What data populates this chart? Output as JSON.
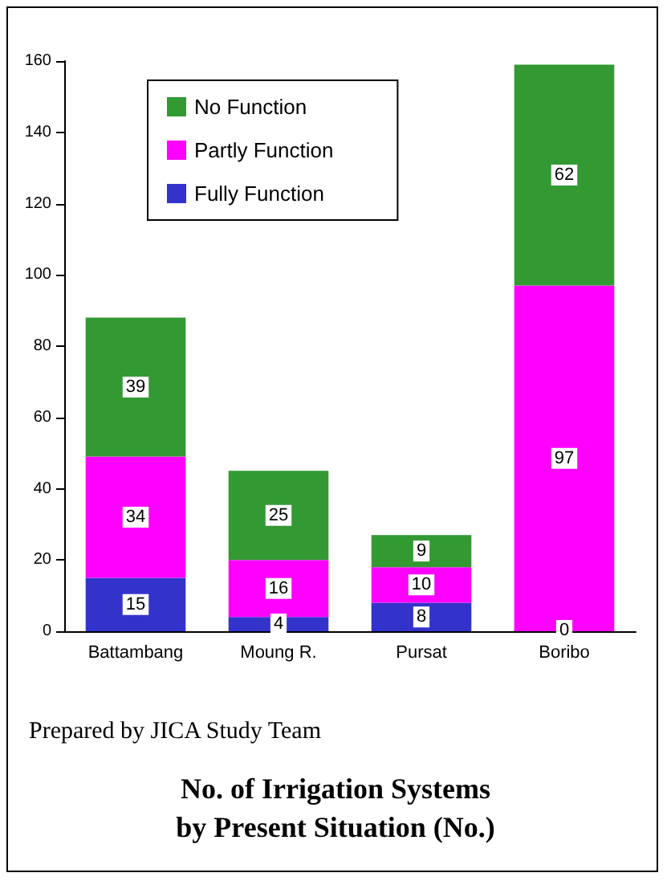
{
  "chart_data": {
    "type": "bar",
    "title": "No. of Irrigation Systems\nby Present Situation (No.)",
    "annotations": [
      "Prepared by JICA Study Team"
    ],
    "categories": [
      "Battambang",
      "Moung R.",
      "Pursat",
      "Boribo"
    ],
    "series": [
      {
        "name": "Fully Function",
        "color": "#3333cc",
        "values": [
          15,
          4,
          8,
          0
        ]
      },
      {
        "name": "Partly Function",
        "color": "#ff00ff",
        "values": [
          34,
          16,
          10,
          97
        ]
      },
      {
        "name": "No Function",
        "color": "#339933",
        "values": [
          39,
          25,
          9,
          62
        ]
      }
    ],
    "stacked": true,
    "data_labels": true,
    "ylim": [
      0,
      160
    ],
    "yticks": [
      0,
      20,
      40,
      60,
      80,
      100,
      120,
      140,
      160
    ],
    "grid": false,
    "legend": "top left"
  }
}
